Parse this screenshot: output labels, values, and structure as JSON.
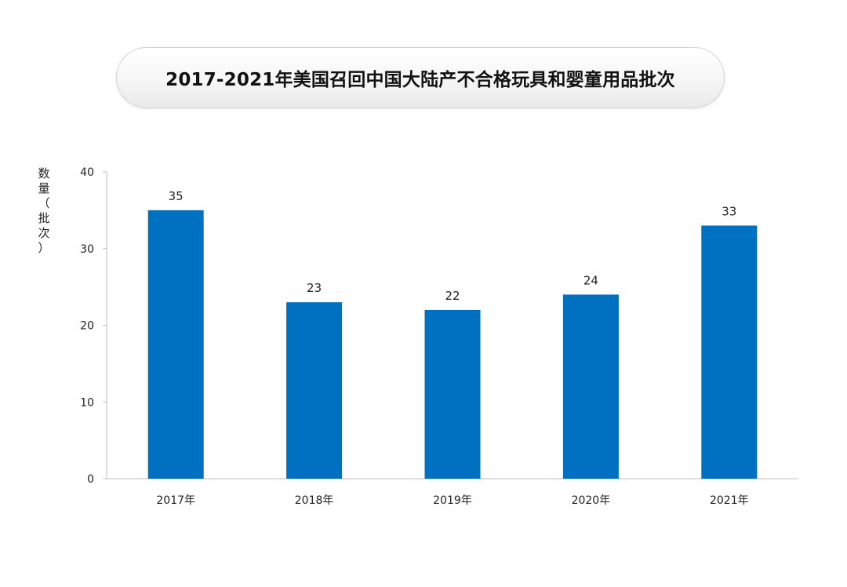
{
  "chart_data": {
    "type": "bar",
    "title": "2017-2021年美国召回中国大陆产不合格玩具和婴童用品批次",
    "ylabel": "数量（批次）",
    "xlabel": "",
    "categories": [
      "2017年",
      "2018年",
      "2019年",
      "2020年",
      "2021年"
    ],
    "values": [
      35,
      23,
      22,
      24,
      33
    ],
    "ylim": [
      0,
      40
    ],
    "yticks": [
      0,
      10,
      20,
      30,
      40
    ],
    "grid": false,
    "legend": "none",
    "data_labels": true,
    "colors": {
      "bar": "#0070C0",
      "axis": "#bfbfbf"
    }
  }
}
